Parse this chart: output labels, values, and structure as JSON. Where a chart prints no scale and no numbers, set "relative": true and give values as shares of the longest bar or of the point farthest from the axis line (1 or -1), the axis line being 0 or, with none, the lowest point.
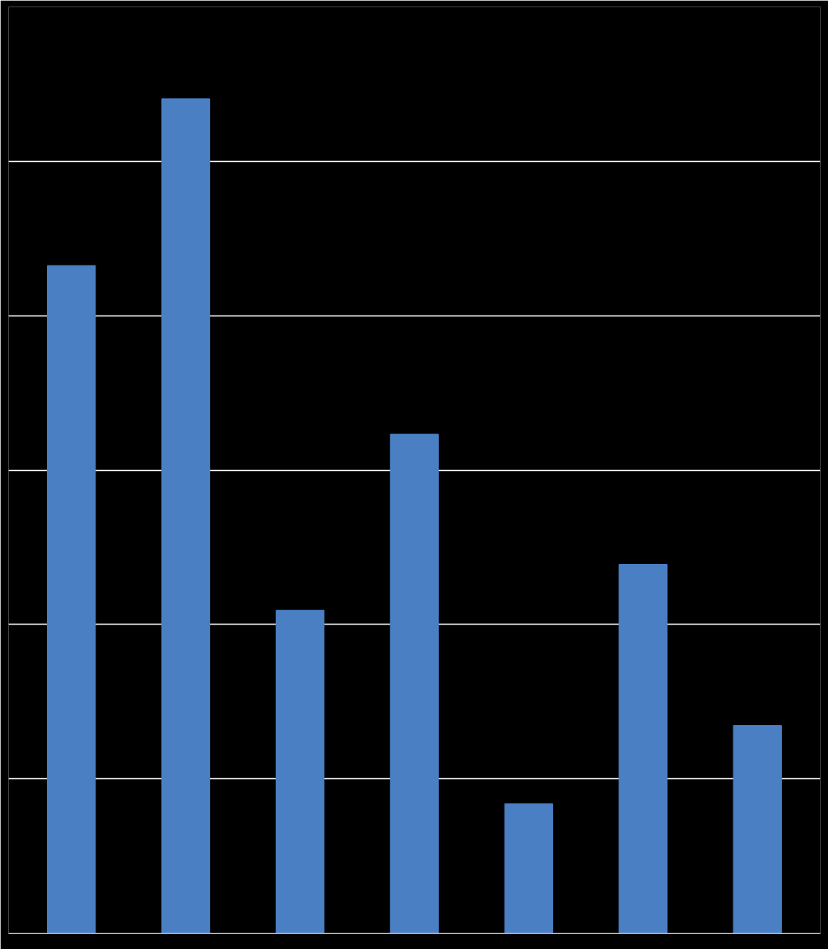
{
  "chart_data": {
    "type": "bar",
    "relative": true,
    "categories": [
      null,
      null,
      null,
      null,
      null,
      null,
      null
    ],
    "values": [
      0.8,
      1,
      0.387,
      0.598,
      0.155,
      0.442,
      0.249
    ],
    "color": "#4a7fc4",
    "grid": "y"
  }
}
